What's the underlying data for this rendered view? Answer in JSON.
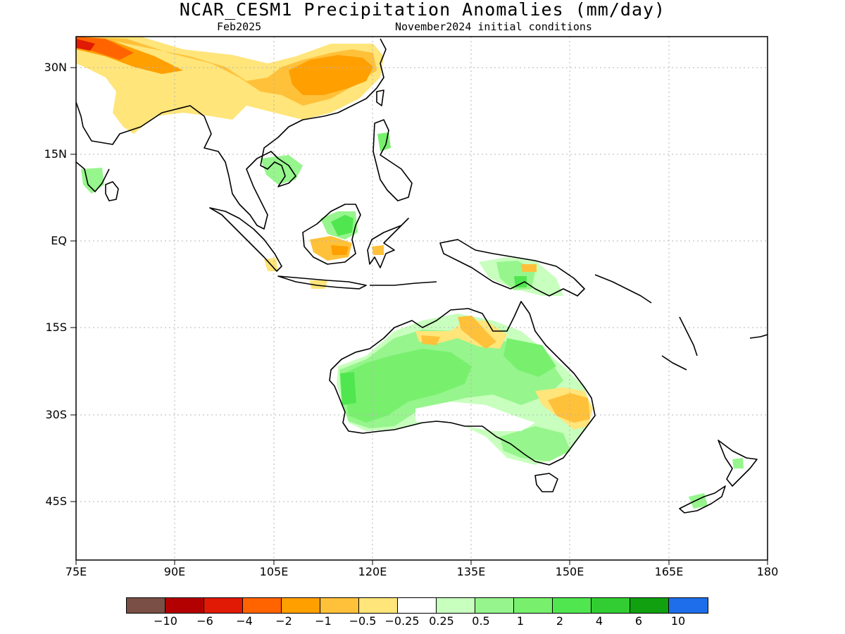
{
  "title": "NCAR_CESM1 Precipitation Anomalies (mm/day)",
  "subtitle_left": "Feb2025",
  "subtitle_right": "November2024 initial conditions",
  "lat_labels": [
    "30N",
    "15N",
    "EQ",
    "15S",
    "30S",
    "45S"
  ],
  "lon_labels": [
    "75E",
    "90E",
    "105E",
    "120E",
    "135E",
    "150E",
    "165E",
    "180"
  ],
  "colorbar": {
    "colors": [
      "#7a4f45",
      "#b30000",
      "#e01a05",
      "#ff6400",
      "#ff9f00",
      "#ffc13a",
      "#ffe57a",
      "#ffffff",
      "#c8ffbe",
      "#96f58c",
      "#78f06e",
      "#50e650",
      "#32cd32",
      "#10a010",
      "#1e6eeb"
    ],
    "labels": [
      "−10",
      "−6",
      "−4",
      "−2",
      "−1",
      "−0.5",
      "−0.25",
      "0.25",
      "0.5",
      "1",
      "2",
      "4",
      "6",
      "10"
    ]
  },
  "map_colors": {
    "frame": "#000000",
    "grid": "#b4b4b4",
    "coast": "#000000"
  }
}
